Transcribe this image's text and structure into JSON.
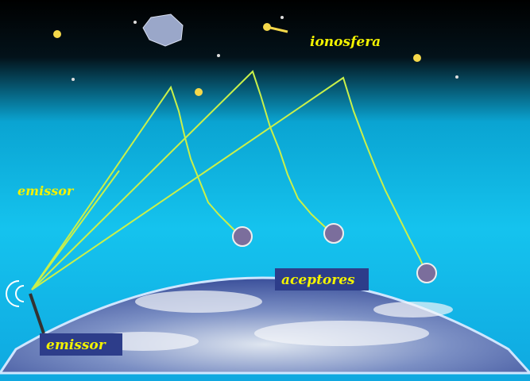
{
  "labels": {
    "ionosphere": "ionosfera",
    "emitter_side": "emissor",
    "receptors": "aceptores",
    "emitter": "emissor"
  }
}
